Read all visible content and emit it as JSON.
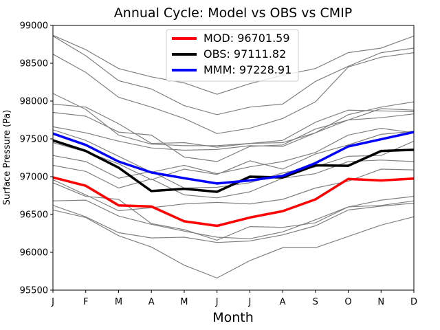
{
  "chart_data": {
    "type": "line",
    "title": "Annual Cycle: Model vs OBS vs CMIP",
    "xlabel": "Month",
    "ylabel": "Surface Pressure (Pa)",
    "categories": [
      "J",
      "F",
      "M",
      "A",
      "M",
      "J",
      "J",
      "A",
      "S",
      "O",
      "N",
      "D"
    ],
    "ylim": [
      95500,
      99000
    ],
    "yticks": [
      95500,
      96000,
      96500,
      97000,
      97500,
      98000,
      98500,
      99000
    ],
    "legend_position": "top-center",
    "colors": {
      "mod": "#ff0000",
      "obs": "#000000",
      "mmm": "#0000ff",
      "cmip": "#808080",
      "background": "#ffffff"
    },
    "series": [
      {
        "name": "MOD: 96701.59",
        "role": "mod",
        "values": [
          96990,
          96880,
          96620,
          96605,
          96410,
          96350,
          96460,
          96545,
          96700,
          96970,
          96950,
          96975
        ]
      },
      {
        "name": "OBS: 97111.82",
        "role": "obs",
        "values": [
          97480,
          97340,
          97120,
          96810,
          96840,
          96800,
          97000,
          96990,
          97150,
          97145,
          97340,
          97355
        ]
      },
      {
        "name": "MMM: 97228.91",
        "role": "mmm",
        "values": [
          97570,
          97420,
          97200,
          97055,
          96980,
          96910,
          96950,
          97010,
          97180,
          97400,
          97495,
          97590
        ]
      }
    ],
    "cmip_series": [
      [
        98870,
        98680,
        98430,
        98320,
        98240,
        98090,
        98230,
        98340,
        98430,
        98640,
        98700,
        98860
      ],
      [
        98860,
        98600,
        98270,
        98160,
        97940,
        97820,
        97920,
        97960,
        98260,
        98460,
        98640,
        98700
      ],
      [
        98620,
        98380,
        98050,
        97920,
        97770,
        97570,
        97640,
        97770,
        97990,
        98450,
        98580,
        98640
      ],
      [
        98100,
        97890,
        97550,
        97430,
        97410,
        97410,
        97440,
        97450,
        97580,
        97820,
        97920,
        97990
      ],
      [
        97960,
        97920,
        97700,
        97440,
        97450,
        97390,
        97440,
        97480,
        97720,
        97880,
        97870,
        97860
      ],
      [
        97850,
        97800,
        97590,
        97550,
        97260,
        97200,
        97400,
        97420,
        97630,
        97750,
        97900,
        97880
      ],
      [
        97660,
        97580,
        97470,
        97380,
        97350,
        97360,
        97410,
        97400,
        97580,
        97750,
        97780,
        97830
      ],
      [
        97620,
        97480,
        97270,
        97060,
        97150,
        97040,
        97130,
        97200,
        97320,
        97550,
        97640,
        97580
      ],
      [
        97450,
        97330,
        97170,
        96960,
        97100,
        97030,
        97210,
        97100,
        97300,
        97420,
        97560,
        97600
      ],
      [
        97280,
        97200,
        96980,
        97070,
        96850,
        96860,
        96920,
        97050,
        97130,
        97270,
        97280,
        97470
      ],
      [
        97150,
        97070,
        96850,
        96970,
        96760,
        96720,
        96800,
        96980,
        97040,
        97200,
        97220,
        97200
      ],
      [
        96960,
        96760,
        96550,
        96590,
        96640,
        96660,
        96640,
        96700,
        96850,
        96940,
        97100,
        97090
      ],
      [
        96920,
        96740,
        96700,
        96380,
        96300,
        96160,
        96340,
        96330,
        96390,
        96600,
        96620,
        96680
      ],
      [
        96680,
        96690,
        96480,
        96370,
        96280,
        96200,
        96180,
        96270,
        96430,
        96600,
        96690,
        96740
      ],
      [
        96620,
        96470,
        96260,
        96190,
        96200,
        96130,
        96150,
        96230,
        96350,
        96560,
        96610,
        96650
      ],
      [
        96560,
        96460,
        96220,
        96070,
        95830,
        95660,
        95890,
        96060,
        96060,
        96210,
        96360,
        96470
      ]
    ]
  }
}
